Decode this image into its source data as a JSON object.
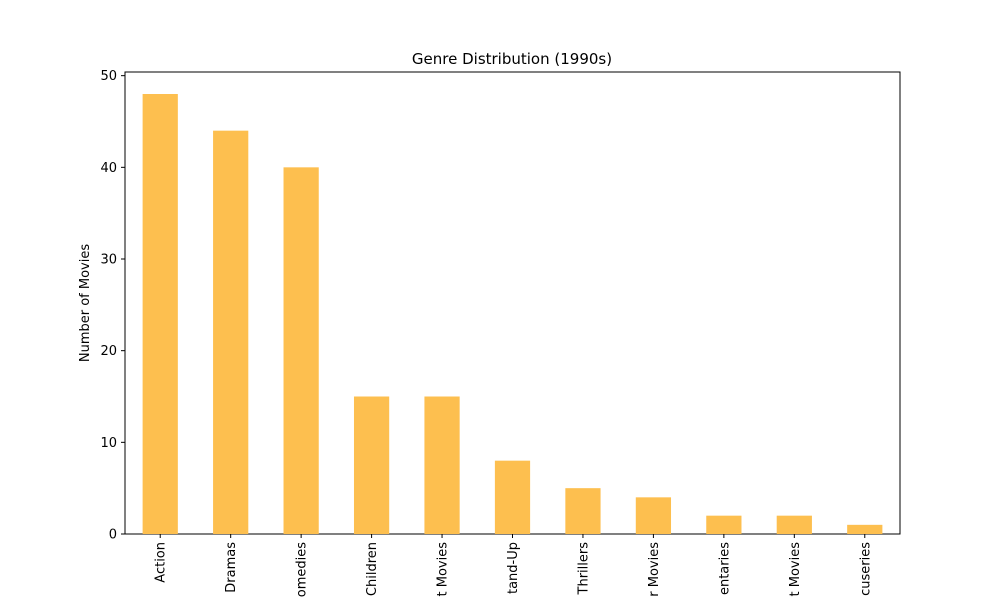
{
  "chart_data": {
    "type": "bar",
    "title": "Genre Distribution (1990s)",
    "y_label": "Number of Movies",
    "categories": [
      "Action",
      "Dramas",
      "omedies",
      "Children",
      "t Movies",
      "tand-Up",
      "Thrillers",
      "r Movies",
      "entaries",
      "t Movies",
      "cuseries"
    ],
    "values": [
      48,
      44,
      40,
      15,
      15,
      8,
      5,
      4,
      2,
      2,
      1
    ],
    "color": "#fdbf4f",
    "ylim": [
      0,
      50.4
    ],
    "yticks": [
      0,
      10,
      20,
      30,
      40,
      50
    ],
    "grid": false
  }
}
